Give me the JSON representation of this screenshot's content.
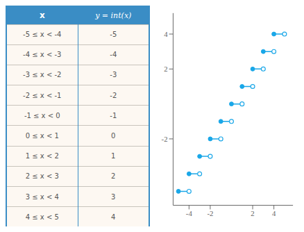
{
  "chart_data": [
    {
      "type": "table",
      "color": "#3a8dc5",
      "columns": [
        "x",
        "y = int(x)"
      ],
      "rows": [
        [
          "-5 ≤ x < -4",
          "-5"
        ],
        [
          "-4 ≤ x < -3",
          "-4"
        ],
        [
          "-3 ≤ x < -2",
          "-3"
        ],
        [
          "-2 ≤ x < -1",
          "-2"
        ],
        [
          "-1 ≤ x < 0",
          "-1"
        ],
        [
          "0 ≤ x < 1",
          "0"
        ],
        [
          "1 ≤ x < 2",
          "1"
        ],
        [
          "2 ≤ x < 3",
          "2"
        ],
        [
          "3 ≤ x < 4",
          "3"
        ],
        [
          "4 ≤ x < 5",
          "4"
        ]
      ]
    },
    {
      "type": "line",
      "color": "#1aa7e8",
      "series": [
        {
          "x": [
            -5,
            -4
          ],
          "values": [
            -5,
            -5
          ]
        },
        {
          "x": [
            -4,
            -3
          ],
          "values": [
            -4,
            -4
          ]
        },
        {
          "x": [
            -3,
            -2
          ],
          "values": [
            -3,
            -3
          ]
        },
        {
          "x": [
            -2,
            -1
          ],
          "values": [
            -2,
            -2
          ]
        },
        {
          "x": [
            -1,
            0
          ],
          "values": [
            -1,
            -1
          ]
        },
        {
          "x": [
            0,
            1
          ],
          "values": [
            0,
            0
          ]
        },
        {
          "x": [
            1,
            2
          ],
          "values": [
            1,
            1
          ]
        },
        {
          "x": [
            2,
            3
          ],
          "values": [
            2,
            2
          ]
        },
        {
          "x": [
            3,
            4
          ],
          "values": [
            3,
            3
          ]
        },
        {
          "x": [
            4,
            5
          ],
          "values": [
            4,
            4
          ]
        }
      ],
      "xlim": [
        -5.5,
        5.8
      ],
      "ylim": [
        -5.8,
        5.2
      ],
      "xticks": [
        -4,
        -2,
        2,
        4
      ],
      "yticks": [
        -2,
        2,
        4
      ],
      "grid": false
    }
  ]
}
